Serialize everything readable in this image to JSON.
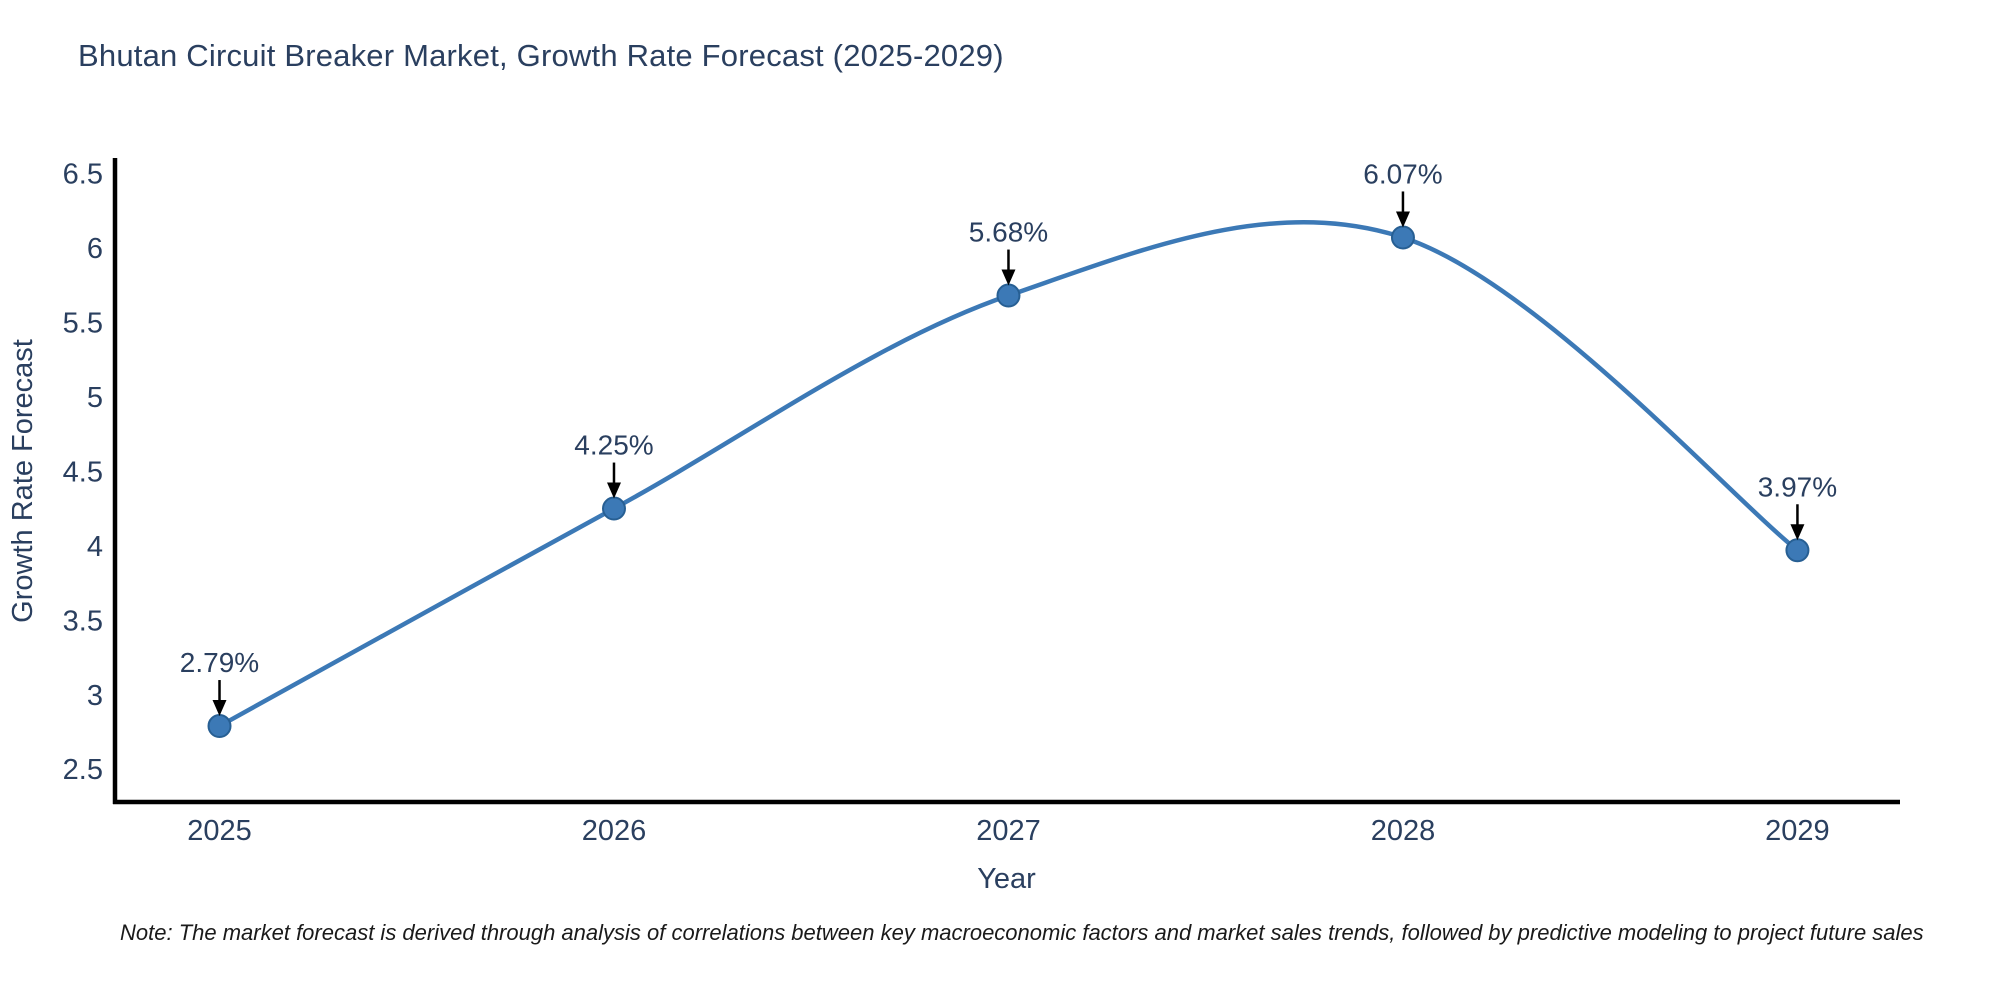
{
  "title": "Bhutan Circuit Breaker Market, Growth Rate Forecast (2025-2029)",
  "note": "Note: The market forecast is derived through analysis of correlations between key macroeconomic factors and market sales trends, followed by predictive modeling to project future sales",
  "colors": {
    "line": "#3c79b6",
    "marker_fill": "#3c79b6",
    "marker_edge": "#275f93",
    "axis": "#000000",
    "text": "#2a3f5f",
    "note_text": "#1a1a1a",
    "arrow": "#000000",
    "background": "#ffffff"
  },
  "chart_data": {
    "type": "line",
    "line_shape": "spline",
    "title": "Bhutan Circuit Breaker Market, Growth Rate Forecast (2025-2029)",
    "xlabel": "Year",
    "ylabel": "Growth Rate Forecast",
    "x": [
      2025,
      2026,
      2027,
      2028,
      2029
    ],
    "y": [
      2.79,
      4.25,
      5.68,
      6.07,
      3.97
    ],
    "point_labels": [
      "2.79%",
      "4.25%",
      "5.68%",
      "6.07%",
      "3.97%"
    ],
    "xticks": [
      "2025",
      "2026",
      "2027",
      "2028",
      "2029"
    ],
    "yticks": [
      2.5,
      3,
      3.5,
      4,
      4.5,
      5,
      5.5,
      6,
      6.5
    ],
    "xlim": [
      2024.73,
      2029.26
    ],
    "ylim": [
      2.28,
      6.59
    ],
    "grid": false,
    "legend": false,
    "marker": "circle",
    "annotation_arrow": "down"
  }
}
